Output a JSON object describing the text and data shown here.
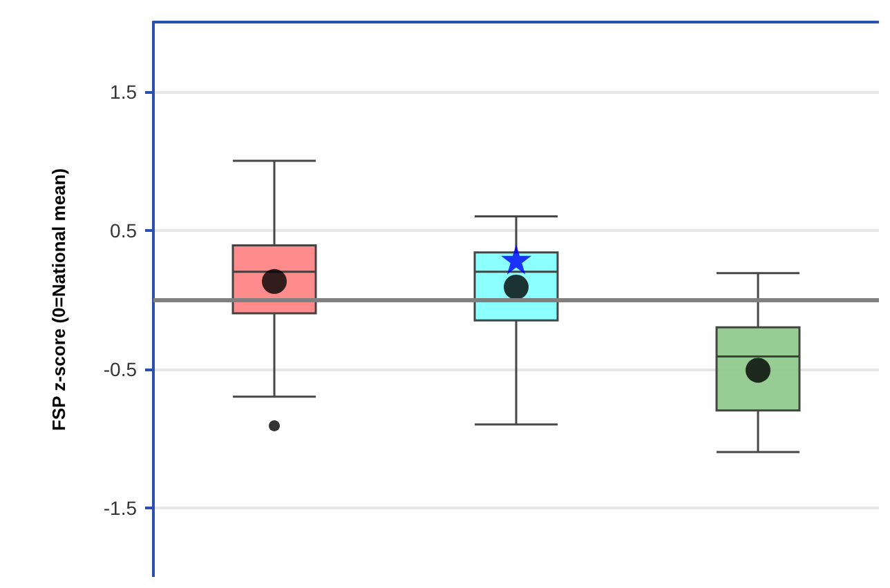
{
  "chart_data": {
    "type": "box",
    "ylabel": "FSP z-score (0=National mean)",
    "categories": [
      null,
      null,
      null
    ],
    "colors": [
      "#ff8080",
      "#80ffff",
      "#8cc88a"
    ],
    "boxes": [
      {
        "low": -0.7,
        "q1": -0.1,
        "median": 0.2,
        "q3": 0.39,
        "high": 1.0,
        "mean": 0.13,
        "outliers": [
          -0.91
        ]
      },
      {
        "low": -0.9,
        "q1": -0.15,
        "median": 0.2,
        "q3": 0.34,
        "high": 0.6,
        "mean": 0.09
      },
      {
        "low": -1.1,
        "q1": -0.8,
        "median": -0.41,
        "q3": -0.2,
        "high": 0.19,
        "mean": -0.51
      }
    ],
    "series": [
      {
        "type": "scatter",
        "marker": "star",
        "color": "#0000ff",
        "values": [
          null,
          0.29,
          null
        ]
      }
    ],
    "ylim": [
      -2,
      2
    ],
    "yticks": [
      -1.5,
      -0.5,
      0.5,
      1.5
    ],
    "grid": "y",
    "ref_lines": [
      {
        "axis": "y",
        "value": 0,
        "color": "#808080"
      }
    ],
    "tick_labels": "y"
  }
}
